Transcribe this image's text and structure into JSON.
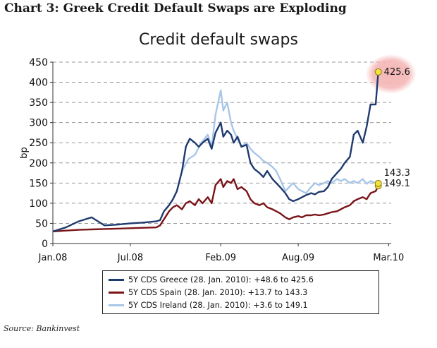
{
  "page": {
    "heading": "Chart 3:   Greek Credit Default Swaps are Exploding",
    "source": "Source: Bankinvest"
  },
  "chart_data": {
    "type": "line",
    "title": "Credit default swaps",
    "ylabel": "bp",
    "xlabel": "",
    "ylim": [
      0,
      450
    ],
    "yticks": [
      0,
      50,
      100,
      150,
      200,
      250,
      300,
      350,
      400,
      450
    ],
    "xlim": [
      0,
      26.2
    ],
    "xticks": [
      {
        "value": 0,
        "label": "Jan.08"
      },
      {
        "value": 6,
        "label": "Jul.08"
      },
      {
        "value": 13,
        "label": "Feb.09"
      },
      {
        "value": 19,
        "label": "Aug.09"
      },
      {
        "value": 26,
        "label": "Mar.10"
      }
    ],
    "grid": "horizontal-dashed",
    "series": [
      {
        "name": "5Y CDS Greece (28. Jan. 2010): +48.6 to 425.6",
        "color": "#1f3a6e",
        "points": [
          [
            0,
            30
          ],
          [
            1,
            40
          ],
          [
            2,
            55
          ],
          [
            3,
            65
          ],
          [
            3.5,
            55
          ],
          [
            4,
            45
          ],
          [
            5,
            47
          ],
          [
            6,
            50
          ],
          [
            7,
            52
          ],
          [
            8,
            55
          ],
          [
            8.3,
            58
          ],
          [
            8.6,
            80
          ],
          [
            9,
            95
          ],
          [
            9.3,
            110
          ],
          [
            9.6,
            130
          ],
          [
            10,
            180
          ],
          [
            10.3,
            240
          ],
          [
            10.6,
            260
          ],
          [
            11,
            250
          ],
          [
            11.3,
            240
          ],
          [
            11.6,
            250
          ],
          [
            12,
            260
          ],
          [
            12.3,
            235
          ],
          [
            12.6,
            275
          ],
          [
            13,
            300
          ],
          [
            13.2,
            265
          ],
          [
            13.5,
            280
          ],
          [
            13.8,
            270
          ],
          [
            14,
            250
          ],
          [
            14.3,
            265
          ],
          [
            14.6,
            240
          ],
          [
            15,
            245
          ],
          [
            15.3,
            200
          ],
          [
            15.6,
            185
          ],
          [
            16,
            175
          ],
          [
            16.3,
            165
          ],
          [
            16.6,
            180
          ],
          [
            17,
            160
          ],
          [
            17.3,
            150
          ],
          [
            17.6,
            140
          ],
          [
            18,
            125
          ],
          [
            18.3,
            110
          ],
          [
            18.6,
            105
          ],
          [
            19,
            110
          ],
          [
            19.3,
            115
          ],
          [
            19.6,
            120
          ],
          [
            20,
            125
          ],
          [
            20.3,
            122
          ],
          [
            20.6,
            128
          ],
          [
            21,
            130
          ],
          [
            21.3,
            140
          ],
          [
            21.6,
            160
          ],
          [
            22,
            175
          ],
          [
            22.3,
            185
          ],
          [
            22.6,
            200
          ],
          [
            23,
            215
          ],
          [
            23.3,
            270
          ],
          [
            23.6,
            280
          ],
          [
            24,
            250
          ],
          [
            24.3,
            290
          ],
          [
            24.6,
            345
          ],
          [
            25,
            345
          ],
          [
            25.2,
            425.6
          ]
        ],
        "end_label": "425.6"
      },
      {
        "name": "5Y CDS Spain (28. Jan. 2010): +13.7 to 143.3",
        "color": "#7a1418",
        "points": [
          [
            0,
            30
          ],
          [
            1,
            32
          ],
          [
            2,
            34
          ],
          [
            3,
            35
          ],
          [
            4,
            36
          ],
          [
            5,
            37
          ],
          [
            6,
            38
          ],
          [
            7,
            39
          ],
          [
            8,
            40
          ],
          [
            8.3,
            45
          ],
          [
            8.6,
            60
          ],
          [
            9,
            80
          ],
          [
            9.3,
            90
          ],
          [
            9.6,
            95
          ],
          [
            10,
            85
          ],
          [
            10.3,
            100
          ],
          [
            10.6,
            105
          ],
          [
            11,
            95
          ],
          [
            11.3,
            110
          ],
          [
            11.6,
            100
          ],
          [
            12,
            115
          ],
          [
            12.3,
            100
          ],
          [
            12.6,
            145
          ],
          [
            13,
            160
          ],
          [
            13.2,
            140
          ],
          [
            13.5,
            155
          ],
          [
            13.8,
            150
          ],
          [
            14,
            160
          ],
          [
            14.3,
            135
          ],
          [
            14.6,
            140
          ],
          [
            15,
            130
          ],
          [
            15.3,
            110
          ],
          [
            15.6,
            100
          ],
          [
            16,
            95
          ],
          [
            16.3,
            100
          ],
          [
            16.6,
            90
          ],
          [
            17,
            85
          ],
          [
            17.3,
            80
          ],
          [
            17.6,
            75
          ],
          [
            18,
            65
          ],
          [
            18.3,
            60
          ],
          [
            18.6,
            65
          ],
          [
            19,
            68
          ],
          [
            19.3,
            65
          ],
          [
            19.6,
            70
          ],
          [
            20,
            70
          ],
          [
            20.3,
            72
          ],
          [
            20.6,
            70
          ],
          [
            21,
            72
          ],
          [
            21.3,
            75
          ],
          [
            21.6,
            78
          ],
          [
            22,
            80
          ],
          [
            22.3,
            85
          ],
          [
            22.6,
            90
          ],
          [
            23,
            95
          ],
          [
            23.3,
            105
          ],
          [
            23.6,
            110
          ],
          [
            24,
            115
          ],
          [
            24.3,
            110
          ],
          [
            24.6,
            125
          ],
          [
            25,
            130
          ],
          [
            25.2,
            143.3
          ]
        ],
        "end_label": "143.3"
      },
      {
        "name": "5Y CDS Ireland (28. Jan. 2010): +3.6 to 149.1",
        "color": "#a8c6e8",
        "points": [
          [
            10,
            180
          ],
          [
            10.5,
            210
          ],
          [
            11,
            220
          ],
          [
            11.5,
            250
          ],
          [
            12,
            270
          ],
          [
            12.3,
            240
          ],
          [
            12.6,
            320
          ],
          [
            13,
            380
          ],
          [
            13.2,
            330
          ],
          [
            13.5,
            350
          ],
          [
            13.8,
            300
          ],
          [
            14,
            280
          ],
          [
            14.3,
            260
          ],
          [
            14.6,
            240
          ],
          [
            15,
            250
          ],
          [
            15.3,
            235
          ],
          [
            15.6,
            225
          ],
          [
            16,
            215
          ],
          [
            16.3,
            205
          ],
          [
            16.6,
            200
          ],
          [
            17,
            190
          ],
          [
            17.3,
            180
          ],
          [
            17.6,
            160
          ],
          [
            18,
            130
          ],
          [
            18.3,
            140
          ],
          [
            18.6,
            150
          ],
          [
            19,
            135
          ],
          [
            19.3,
            130
          ],
          [
            19.6,
            125
          ],
          [
            20,
            140
          ],
          [
            20.3,
            150
          ],
          [
            20.6,
            145
          ],
          [
            21,
            150
          ],
          [
            21.3,
            155
          ],
          [
            21.6,
            150
          ],
          [
            22,
            160
          ],
          [
            22.3,
            155
          ],
          [
            22.6,
            160
          ],
          [
            23,
            150
          ],
          [
            23.3,
            155
          ],
          [
            23.6,
            150
          ],
          [
            24,
            160
          ],
          [
            24.3,
            148
          ],
          [
            24.6,
            155
          ],
          [
            25,
            150
          ],
          [
            25.2,
            149.1
          ]
        ],
        "end_label": "149.1"
      }
    ]
  }
}
